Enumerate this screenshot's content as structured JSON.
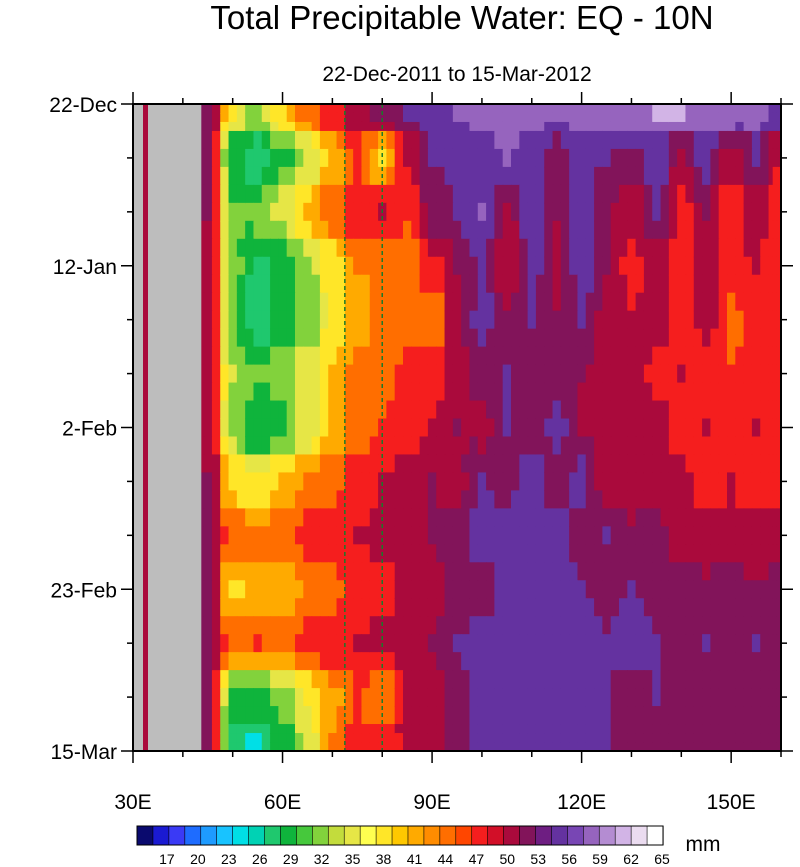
{
  "chart_data": {
    "type": "heatmap",
    "title": "Total Precipitable Water: EQ - 10N",
    "subtitle": "22-Dec-2011 to 15-Mar-2012",
    "x_axis": {
      "range": [
        30,
        160
      ],
      "major_ticks": [
        30,
        60,
        90,
        120,
        150
      ],
      "tick_labels": [
        "30E",
        "60E",
        "90E",
        "120E",
        "150E"
      ],
      "minor_step": 10
    },
    "y_axis": {
      "range": [
        "2011-12-22",
        "2012-03-15"
      ],
      "orientation": "time increases downward",
      "major_ticks": [
        "2011-12-22",
        "2012-01-12",
        "2012-02-02",
        "2012-02-23",
        "2012-03-15"
      ],
      "tick_labels": [
        "22-Dec",
        "12-Jan",
        "2-Feb",
        "23-Feb",
        "15-Mar"
      ],
      "minor_step_days": 7
    },
    "reference_lines_lon": [
      72.5,
      80
    ],
    "missing_data_color": "#bdbdbd",
    "colorbar": {
      "units": "mm",
      "levels": [
        17,
        20,
        23,
        26,
        29,
        32,
        35,
        38,
        41,
        44,
        47,
        50,
        53,
        56,
        59,
        62,
        65
      ],
      "label_every": 3,
      "colors": [
        "#0a0a6e",
        "#1a1ad2",
        "#3a3af5",
        "#1e6cff",
        "#1e9bff",
        "#18c3ff",
        "#00dfe6",
        "#00d2b4",
        "#1fc86e",
        "#0fb43c",
        "#46c83c",
        "#82d23c",
        "#c3dc3c",
        "#e6e646",
        "#ffff50",
        "#ffe628",
        "#ffc800",
        "#ffaa00",
        "#ff8c00",
        "#ff6e00",
        "#ff4600",
        "#f51e1e",
        "#d20f28",
        "#aa0a3c",
        "#82145a",
        "#6e1e82",
        "#6432a0",
        "#7846b4",
        "#9664be",
        "#b48cd2",
        "#d2b4e6",
        "#ebdcf0",
        "#ffffff"
      ]
    },
    "columns_lon": [
      30,
      35,
      40,
      45,
      50,
      55,
      60,
      65,
      70,
      75,
      80,
      85,
      90,
      95,
      100,
      105,
      110,
      115,
      120,
      125,
      130,
      135,
      140,
      145,
      150,
      155,
      160
    ],
    "rows_date": [
      "2011-12-22",
      "2011-12-29",
      "2012-01-05",
      "2012-01-12",
      "2012-01-19",
      "2012-01-26",
      "2012-02-02",
      "2012-02-09",
      "2012-02-16",
      "2012-02-23",
      "2012-03-01",
      "2012-03-08",
      "2012-03-15"
    ],
    "values_mm": [
      [
        null,
        null,
        null,
        55,
        38,
        34,
        40,
        46,
        49,
        52,
        54,
        56,
        58,
        59,
        60,
        60,
        60,
        59,
        60,
        61,
        61,
        62,
        62,
        61,
        61,
        60,
        58
      ],
      [
        null,
        null,
        null,
        54,
        30,
        27,
        31,
        35,
        42,
        47,
        40,
        50,
        56,
        57,
        58,
        59,
        58,
        55,
        58,
        56,
        55,
        58,
        52,
        57,
        51,
        56,
        50
      ],
      [
        null,
        null,
        null,
        53,
        32,
        33,
        36,
        42,
        46,
        49,
        50,
        47,
        54,
        56,
        59,
        52,
        57,
        53,
        58,
        53,
        51,
        56,
        49,
        53,
        48,
        51,
        47
      ],
      [
        null,
        null,
        null,
        52,
        33,
        28,
        30,
        34,
        39,
        44,
        44,
        45,
        49,
        53,
        56,
        50,
        57,
        52,
        57,
        53,
        49,
        52,
        47,
        52,
        49,
        50,
        48
      ],
      [
        null,
        null,
        null,
        52,
        32,
        27,
        30,
        33,
        39,
        43,
        45,
        44,
        44,
        52,
        57,
        53,
        56,
        53,
        56,
        52,
        50,
        52,
        48,
        51,
        46,
        49,
        47
      ],
      [
        null,
        null,
        null,
        51,
        35,
        32,
        34,
        36,
        41,
        45,
        46,
        48,
        48,
        52,
        54,
        56,
        54,
        55,
        53,
        51,
        52,
        49,
        50,
        48,
        47,
        49,
        48
      ],
      [
        null,
        null,
        null,
        52,
        34,
        29,
        31,
        36,
        42,
        45,
        47,
        49,
        50,
        53,
        52,
        56,
        53,
        57,
        52,
        52,
        50,
        52,
        48,
        50,
        47,
        50,
        47
      ],
      [
        null,
        null,
        null,
        53,
        40,
        38,
        41,
        44,
        46,
        48,
        50,
        51,
        53,
        52,
        56,
        55,
        58,
        54,
        57,
        51,
        52,
        50,
        51,
        48,
        50,
        47,
        49
      ],
      [
        null,
        null,
        null,
        54,
        46,
        45,
        46,
        48,
        49,
        50,
        51,
        52,
        53,
        55,
        57,
        58,
        56,
        57,
        55,
        56,
        53,
        54,
        51,
        52,
        50,
        51,
        52
      ],
      [
        null,
        null,
        null,
        53,
        40,
        42,
        41,
        44,
        46,
        48,
        49,
        51,
        52,
        54,
        55,
        57,
        58,
        57,
        56,
        55,
        56,
        55,
        54,
        53,
        54,
        53,
        54
      ],
      [
        null,
        null,
        null,
        53,
        46,
        47,
        46,
        48,
        49,
        50,
        51,
        52,
        53,
        56,
        57,
        58,
        57,
        58,
        57,
        56,
        57,
        56,
        55,
        56,
        55,
        56,
        55
      ],
      [
        null,
        null,
        null,
        53,
        31,
        30,
        33,
        38,
        43,
        47,
        44,
        51,
        52,
        55,
        57,
        58,
        57,
        58,
        57,
        56,
        55,
        56,
        55,
        54,
        53,
        55,
        54
      ],
      [
        null,
        null,
        null,
        54,
        28,
        25,
        30,
        36,
        44,
        48,
        49,
        50,
        52,
        55,
        57,
        57,
        57,
        58,
        56,
        56,
        55,
        55,
        54,
        55,
        54,
        54,
        53
      ]
    ]
  }
}
